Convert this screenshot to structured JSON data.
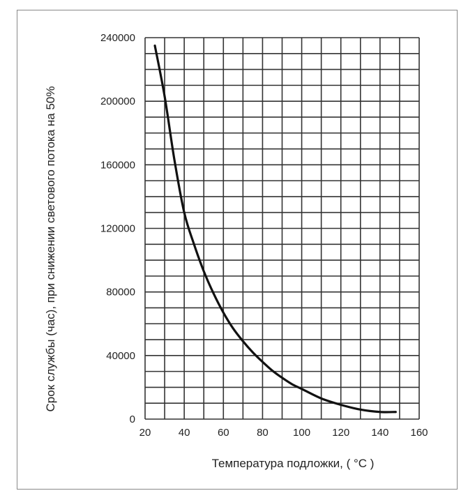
{
  "chart_data": {
    "type": "line",
    "xlabel": "Температура подложки, ( °C )",
    "ylabel": "Срок службы (час), при снижении светового потока на 50%",
    "xlim": [
      20,
      160
    ],
    "ylim": [
      0,
      240000
    ],
    "x_ticks": [
      "20",
      "40",
      "60",
      "80",
      "100",
      "120",
      "140",
      "160"
    ],
    "y_ticks": [
      "0",
      "40000",
      "80000",
      "120000",
      "160000",
      "200000",
      "240000"
    ],
    "grid": true,
    "x_grid_step": 10,
    "y_grid_step": 10000,
    "line_color": "#111111",
    "series": [
      {
        "x": [
          25,
          30,
          35,
          40,
          45,
          50,
          55,
          60,
          65,
          70,
          75,
          80,
          85,
          90,
          95,
          100,
          110,
          120,
          130,
          140,
          148
        ],
        "y": [
          235000,
          203000,
          163000,
          130000,
          110000,
          93000,
          79000,
          67000,
          57000,
          49000,
          42000,
          36000,
          30500,
          26000,
          22000,
          19000,
          13000,
          9000,
          6000,
          4500,
          4500
        ]
      }
    ]
  }
}
